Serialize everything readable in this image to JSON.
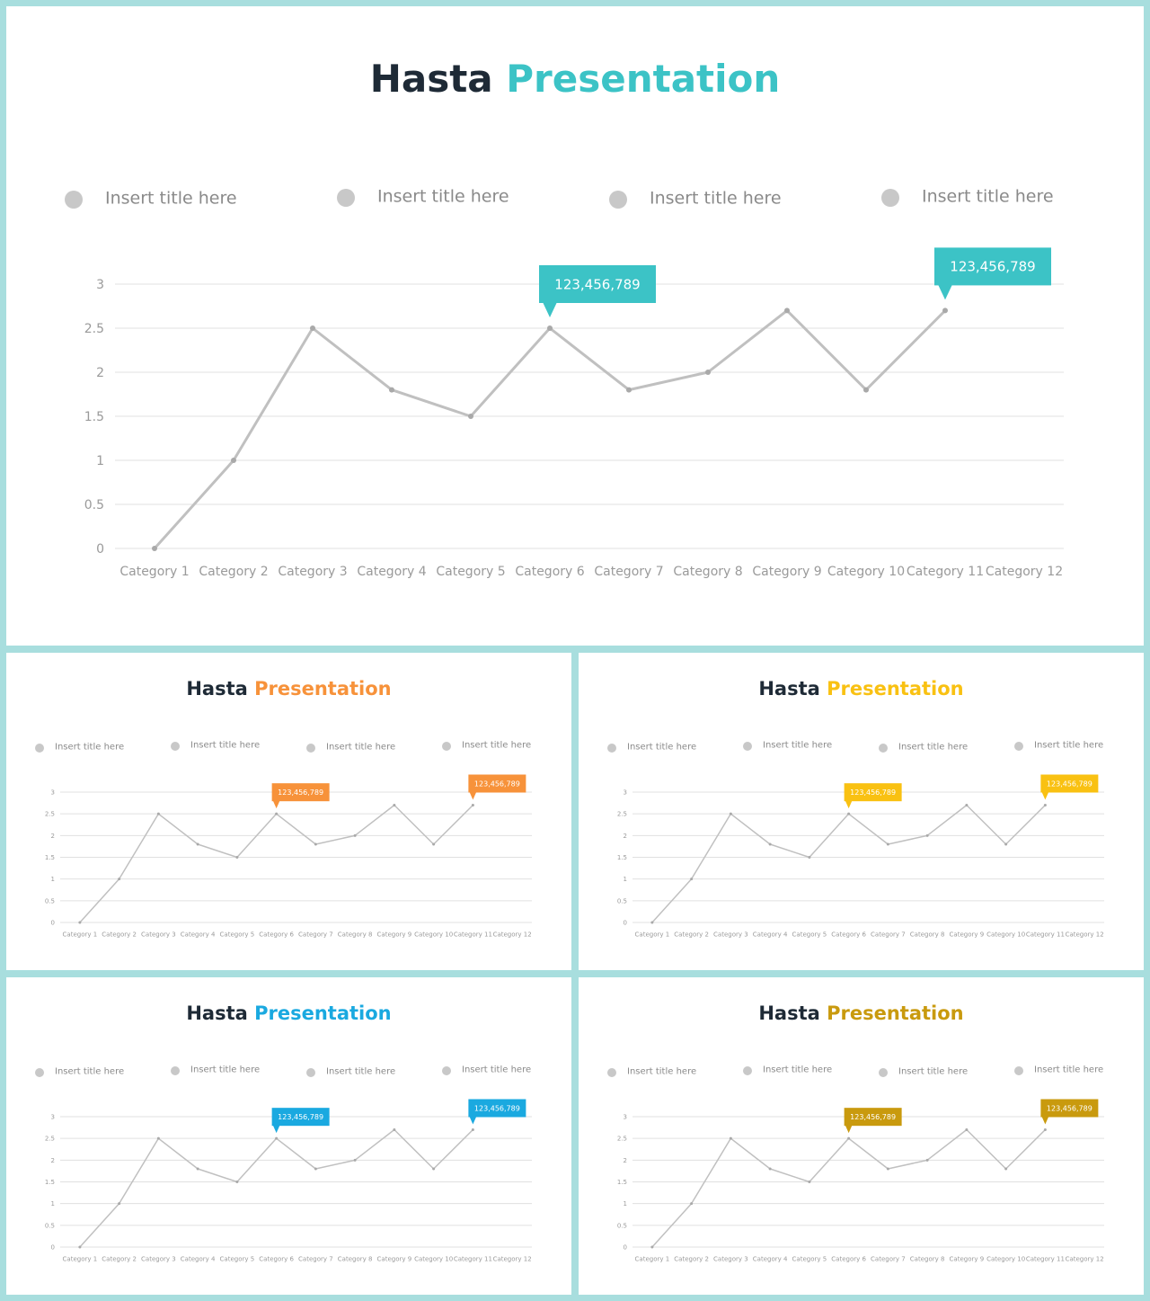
{
  "slides": [
    {
      "id": "slide-main",
      "title_main": "Hasta",
      "title_accent": "Presentation",
      "accent_color": "#3cc3c6",
      "legend": [
        "Insert title here",
        "Insert title here",
        "Insert title here",
        "Insert title here"
      ],
      "callouts": [
        "123,456,789",
        "123,456,789"
      ]
    },
    {
      "id": "slide-tl",
      "title_main": "Hasta",
      "title_accent": "Presentation",
      "accent_color": "#f7923a",
      "legend": [
        "Insert title here",
        "Insert title here",
        "Insert title here",
        "Insert title here"
      ],
      "callouts": [
        "123,456,789",
        "123,456,789"
      ]
    },
    {
      "id": "slide-tr",
      "title_main": "Hasta",
      "title_accent": "Presentation",
      "accent_color": "#f9c112",
      "legend": [
        "Insert title here",
        "Insert title here",
        "Insert title here",
        "Insert title here"
      ],
      "callouts": [
        "123,456,789",
        "123,456,789"
      ]
    },
    {
      "id": "slide-bl",
      "title_main": "Hasta",
      "title_accent": "Presentation",
      "accent_color": "#1aa9e0",
      "legend": [
        "Insert title here",
        "Insert title here",
        "Insert title here",
        "Insert title here"
      ],
      "callouts": [
        "123,456,789",
        "123,456,789"
      ]
    },
    {
      "id": "slide-br",
      "title_main": "Hasta",
      "title_accent": "Presentation",
      "accent_color": "#c99a0e",
      "legend": [
        "Insert title here",
        "Insert title here",
        "Insert title here",
        "Insert title here"
      ],
      "callouts": [
        "123,456,789",
        "123,456,789"
      ]
    }
  ],
  "chart_data": {
    "type": "line",
    "title": "",
    "xlabel": "",
    "ylabel": "",
    "categories": [
      "Category 1",
      "Category 2",
      "Category 3",
      "Category 4",
      "Category 5",
      "Category 6",
      "Category 7",
      "Category 8",
      "Category 9",
      "Category 10",
      "Category 11",
      "Category 12"
    ],
    "series": [
      {
        "values": [
          0,
          1,
          2.5,
          1.8,
          1.5,
          2.5,
          1.8,
          2,
          2.7,
          1.8,
          2.7,
          null
        ]
      }
    ],
    "y_ticks": [
      "0",
      "0.5",
      "1",
      "1.5",
      "2",
      "2.5",
      "3"
    ],
    "ylim": [
      0,
      3
    ],
    "grid": true,
    "legend_position": "top",
    "callout_categories": [
      "Category 6",
      "Category 11"
    ],
    "line_color": "#c0c0c0",
    "grid_color": "#e0e0e0",
    "title_main_color": "#1e2a36",
    "legend_dot_color": "#c8c8c8",
    "label_color": "#9a9a9a"
  }
}
